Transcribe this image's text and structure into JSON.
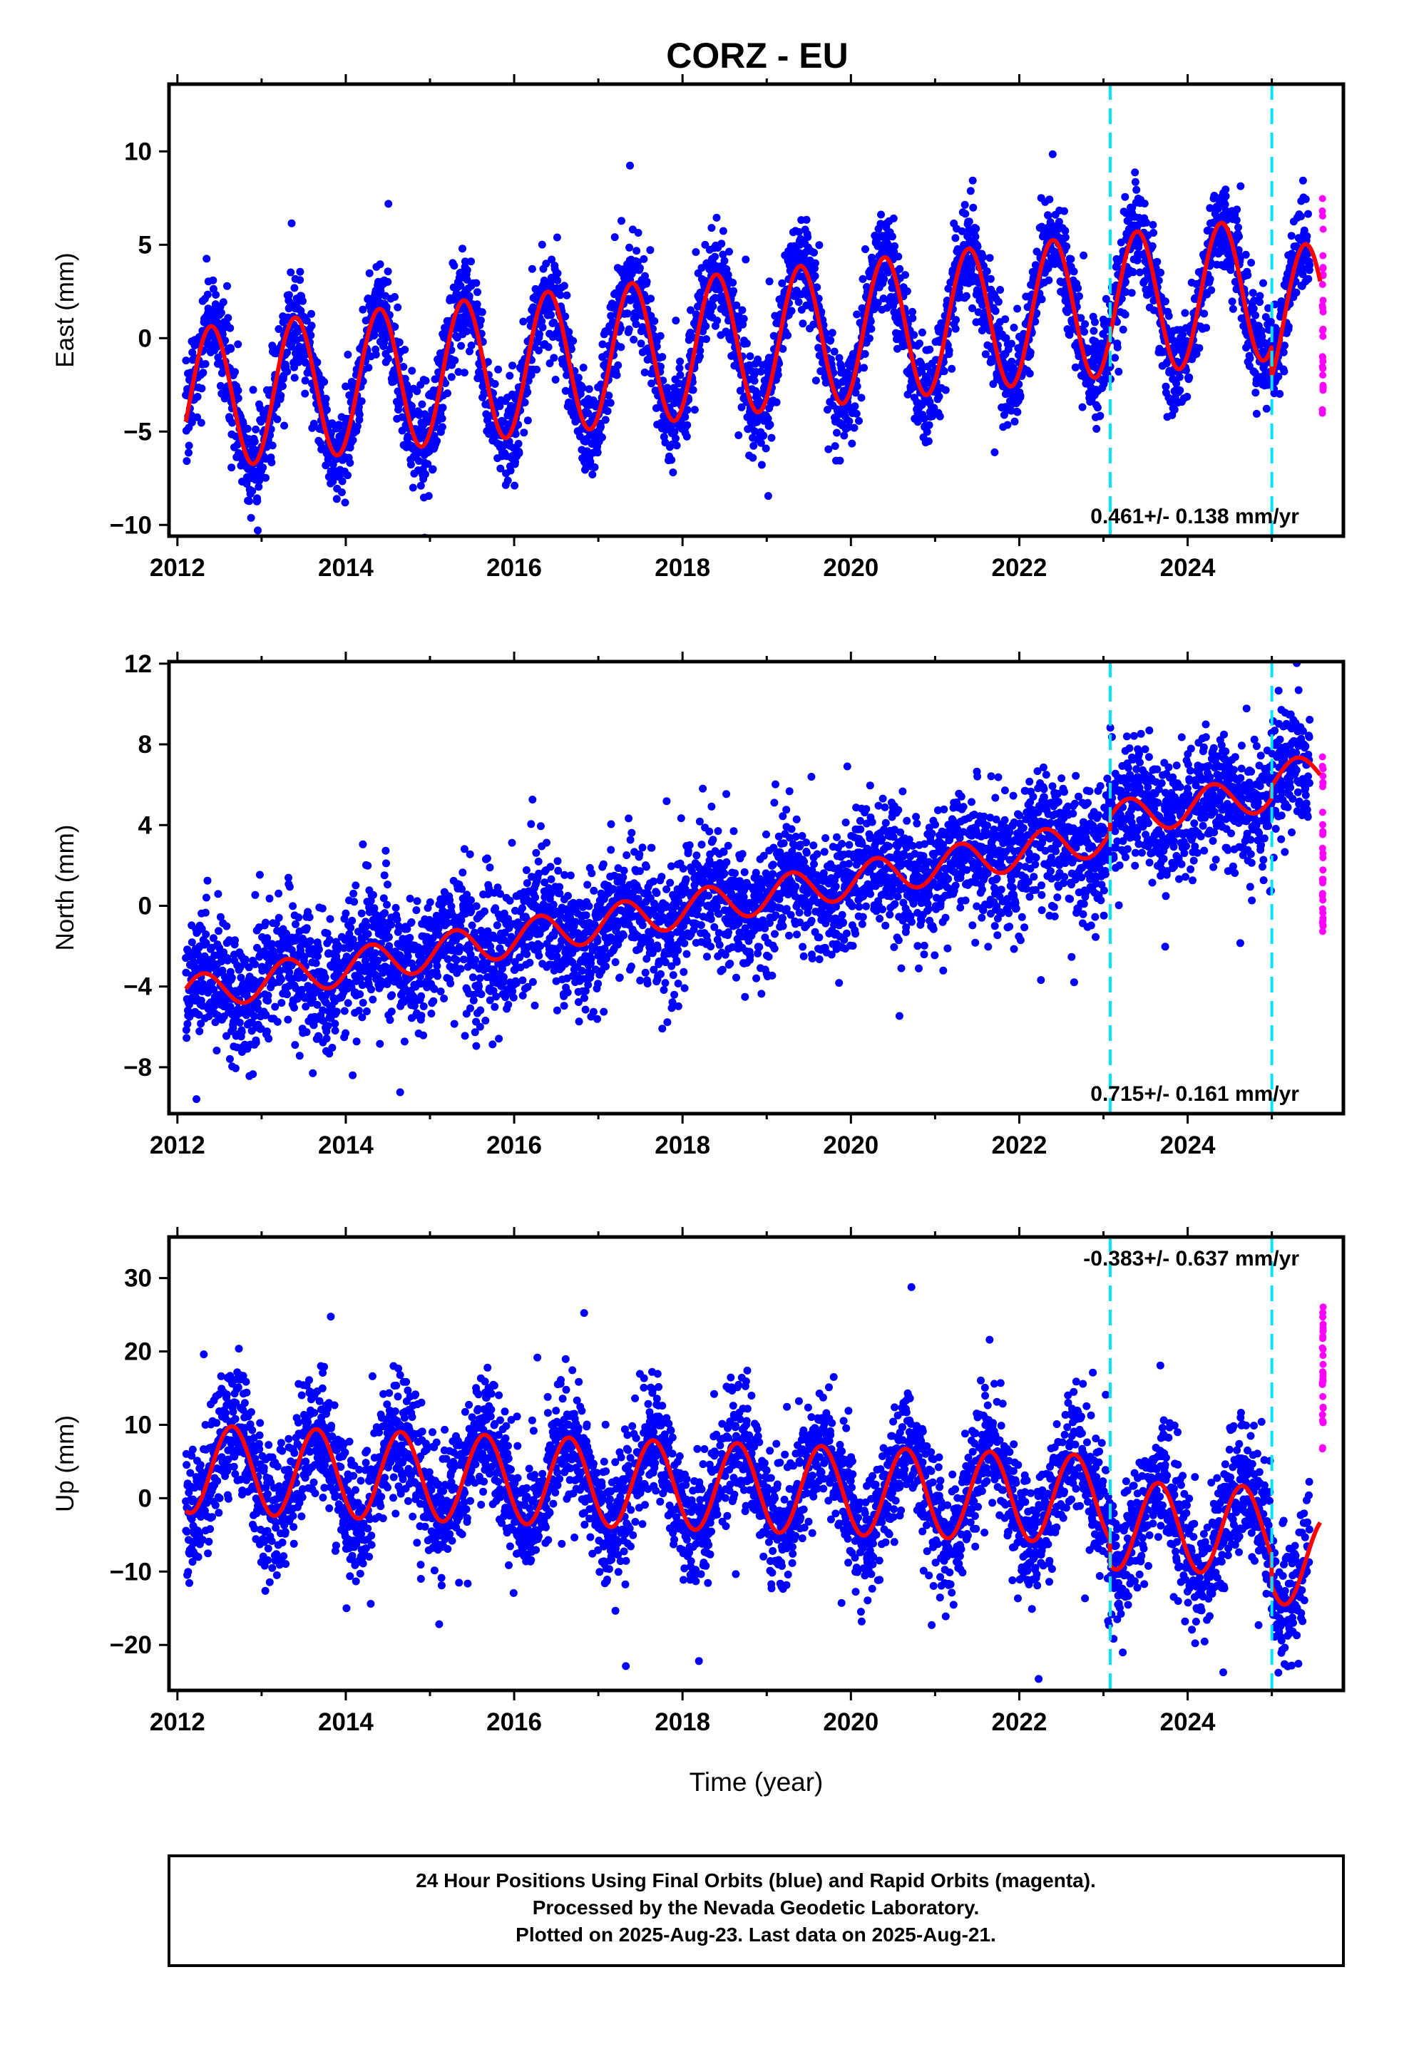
{
  "title": "CORZ - EU",
  "caption": {
    "line1": "24 Hour Positions Using Final Orbits (blue) and Rapid Orbits (magenta).",
    "line2": "Processed by the Nevada Geodetic Laboratory.",
    "line3": "Plotted on 2025-Aug-23. Last data on 2025-Aug-21."
  },
  "colors": {
    "final_orbits": "#0000ff",
    "rapid_orbits": "#ff00ff",
    "model_fit": "#ff0000",
    "equipment_change": "#00e5ff",
    "frame": "#000000"
  },
  "chart_data": [
    {
      "type": "scatter",
      "name": "east",
      "ylabel": "East (mm)",
      "xlabel": "",
      "xlim": [
        2011.9,
        2025.85
      ],
      "ylim": [
        -10.6,
        13.6
      ],
      "xticks": [
        2012,
        2014,
        2016,
        2018,
        2020,
        2022,
        2024
      ],
      "yticks": [
        -10,
        -5,
        0,
        5,
        10
      ],
      "trend_label": "0.461+/- 0.138 mm/yr",
      "trend_label_position": "bottom-right",
      "vertical_lines": [
        2023.08,
        2025.0
      ],
      "model": {
        "t0": 2012.1,
        "t1": 2025.58,
        "trend_mm_per_yr": 0.461,
        "offset": -3.3,
        "amplitude": 3.8,
        "phase_peak_fraction": 0.4,
        "step_2023": 0.0,
        "step_2025": -1.6
      },
      "scatter_sigma": 1.3,
      "rapid_orbit_span": [
        2025.45,
        2025.63
      ],
      "rapid_orbit_range": [
        -4.8,
        8.2
      ]
    },
    {
      "type": "scatter",
      "name": "north",
      "ylabel": "North (mm)",
      "xlabel": "",
      "xlim": [
        2011.9,
        2025.85
      ],
      "ylim": [
        -10.3,
        12.1
      ],
      "xticks": [
        2012,
        2014,
        2016,
        2018,
        2020,
        2022,
        2024
      ],
      "yticks": [
        -8,
        -4,
        0,
        4,
        8,
        12
      ],
      "trend_label": "0.715+/- 0.161 mm/yr",
      "trend_label_position": "bottom-right",
      "vertical_lines": [
        2023.08,
        2025.0
      ],
      "model": {
        "t0": 2012.1,
        "t1": 2025.58,
        "trend_mm_per_yr": 0.715,
        "offset": -4.4,
        "amplitude": 0.9,
        "phase_peak_fraction": 0.3,
        "step_2023": 0.8,
        "step_2025": 0.6
      },
      "scatter_sigma": 1.6,
      "rapid_orbit_span": [
        2025.45,
        2025.63
      ],
      "rapid_orbit_range": [
        -1.3,
        7.4
      ]
    },
    {
      "type": "scatter",
      "name": "up",
      "ylabel": "Up (mm)",
      "xlabel": "Time (year)",
      "xlim": [
        2011.9,
        2025.85
      ],
      "ylim": [
        -26.2,
        35.6
      ],
      "xticks": [
        2012,
        2014,
        2016,
        2018,
        2020,
        2022,
        2024
      ],
      "yticks": [
        -20,
        -10,
        0,
        10,
        20,
        30
      ],
      "trend_label": "-0.383+/- 0.637 mm/yr",
      "trend_label_position": "top-right",
      "vertical_lines": [
        2023.08,
        2025.0
      ],
      "model": {
        "t0": 2012.1,
        "t1": 2025.58,
        "trend_mm_per_yr": -0.383,
        "offset": 4.0,
        "amplitude": 6.0,
        "phase_peak_fraction": 0.65,
        "step_2023": -3.5,
        "step_2025": -4.0
      },
      "scatter_sigma": 4.2,
      "rapid_orbit_span": [
        2025.45,
        2025.63
      ],
      "rapid_orbit_range": [
        6.5,
        26.5
      ]
    }
  ]
}
